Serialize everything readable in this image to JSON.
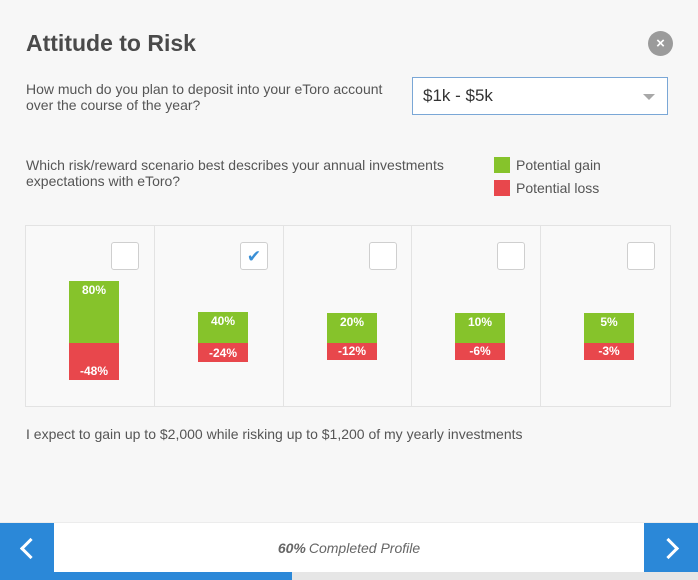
{
  "dialog": {
    "title": "Attitude to Risk",
    "close_label": "×"
  },
  "deposit": {
    "question": "How much do you plan to deposit into your eToro account over the course of the year?",
    "selected": "$1k - $5k"
  },
  "scenario": {
    "question": "Which risk/reward scenario best describes your annual investments expectations with eToro?"
  },
  "legend": {
    "gain": "Potential gain",
    "loss": "Potential loss"
  },
  "colors": {
    "gain": "#86c32b",
    "loss": "#e8474c",
    "accent": "#2b88d8"
  },
  "options": [
    {
      "gain": "80%",
      "loss": "-48%",
      "gain_value": 80,
      "loss_value": 48,
      "selected": false
    },
    {
      "gain": "40%",
      "loss": "-24%",
      "gain_value": 40,
      "loss_value": 24,
      "selected": true
    },
    {
      "gain": "20%",
      "loss": "-12%",
      "gain_value": 20,
      "loss_value": 12,
      "selected": false
    },
    {
      "gain": "10%",
      "loss": "-6%",
      "gain_value": 10,
      "loss_value": 6,
      "selected": false
    },
    {
      "gain": "5%",
      "loss": "-3%",
      "gain_value": 5,
      "loss_value": 3,
      "selected": false
    }
  ],
  "summary": "I expect to gain up to $2,000 while risking up to $1,200 of my yearly investments",
  "footer": {
    "progress_percent": "60%",
    "progress_text": "Completed Profile",
    "progress_value": 0.6,
    "prev_icon": "chevron-left-icon",
    "next_icon": "chevron-right-icon"
  }
}
